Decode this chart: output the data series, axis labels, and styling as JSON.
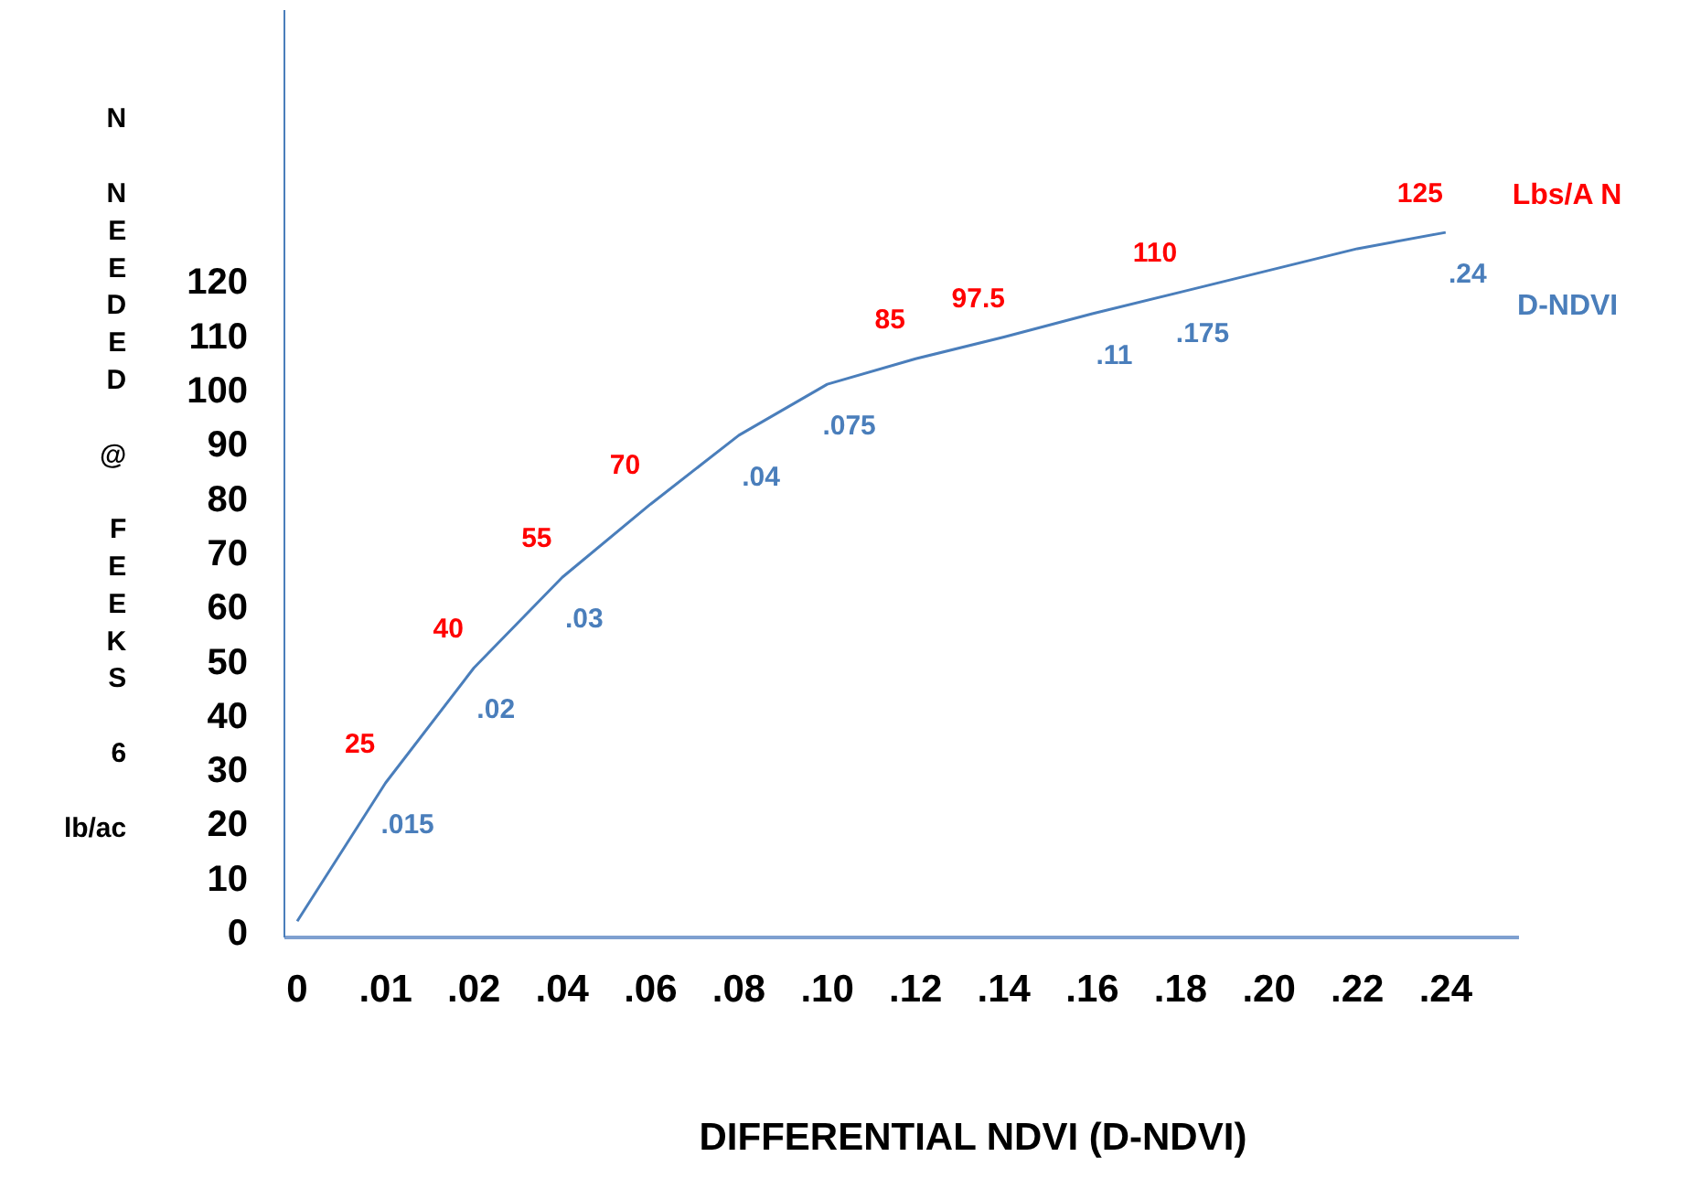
{
  "chart_data": {
    "type": "line",
    "xlabel": "DIFFERENTIAL   NDVI (D-NDVI)",
    "ylabel": "N NEEDED @ FEEKS 6 lb/ac",
    "categories": [
      "0",
      ".01",
      ".02",
      ".04",
      ".06",
      ".08",
      ".10",
      ".12",
      ".14",
      ".16",
      ".18",
      ".20",
      ".22",
      ".24"
    ],
    "series": [
      {
        "name": "Lbs/A N",
        "color": "#ff0000",
        "values": [
          null,
          null,
          null,
          null,
          null,
          null,
          null,
          null,
          null,
          null,
          null,
          null,
          null,
          null
        ]
      },
      {
        "name": "D-NDVI",
        "color": "#4a7ebb",
        "values": [
          2,
          27.5,
          48.7,
          65.4,
          78.9,
          91.6,
          101,
          105.7,
          109.7,
          114,
          118,
          122,
          126,
          129
        ]
      }
    ],
    "ylim": [
      -1,
      170
    ],
    "yticks": [
      0,
      10,
      20,
      30,
      40,
      50,
      60,
      70,
      80,
      90,
      100,
      110,
      120
    ],
    "legend": "right",
    "marker": "none",
    "line_style": "solid",
    "annotations": [
      {
        "text": "25",
        "x": ".01",
        "y": 27.5
      },
      {
        "text": ".015",
        "x": ".01",
        "y": 27.5
      },
      {
        "text": "40",
        "x": ".02",
        "y": 48.7
      },
      {
        "text": ".02",
        "x": ".02",
        "y": 48.7
      },
      {
        "text": "55",
        "x": ".04",
        "y": 65.4
      },
      {
        "text": ".03",
        "x": ".04",
        "y": 65.4
      },
      {
        "text": "70",
        "x": ".06",
        "y": 78.9
      },
      {
        "text": ".04",
        "x": ".08",
        "y": 91.6
      },
      {
        "text": "85",
        "x": ".12",
        "y": 105.7
      },
      {
        "text": ".075",
        "x": ".10",
        "y": 101
      },
      {
        "text": "97.5",
        "x": ".14",
        "y": 109.7
      },
      {
        "text": ".11",
        "x": ".16",
        "y": 114
      },
      {
        "text": "110",
        "x": ".18",
        "y": 118
      },
      {
        "text": ".175",
        "x": ".18",
        "y": 118
      },
      {
        "text": "125",
        "x": ".24",
        "y": 129
      },
      {
        "text": ".24",
        "x": ".24",
        "y": 129
      }
    ]
  }
}
